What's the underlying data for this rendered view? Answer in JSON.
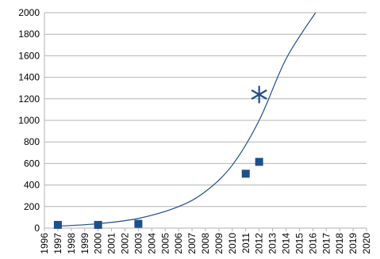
{
  "chart_data": {
    "type": "scatter",
    "title": "",
    "xlabel": "",
    "ylabel": "",
    "xlim": [
      1996,
      2020
    ],
    "ylim": [
      0,
      2000
    ],
    "x_ticks": [
      "1996",
      "1997",
      "1998",
      "1999",
      "2000",
      "2001",
      "2002",
      "2003",
      "2004",
      "2005",
      "2006",
      "2007",
      "2008",
      "2009",
      "2010",
      "2011",
      "2012",
      "2013",
      "2014",
      "2015",
      "2016",
      "2017",
      "2018",
      "2019",
      "2020"
    ],
    "y_ticks": [
      "0",
      "200",
      "400",
      "600",
      "800",
      "1000",
      "1200",
      "1400",
      "1600",
      "1800",
      "2000"
    ],
    "grid": "horizontal",
    "legend": "none",
    "series": [
      {
        "marker": "square",
        "x": [
          1997,
          2000,
          2003,
          2011,
          2012
        ],
        "y": [
          30,
          30,
          40,
          505,
          615
        ]
      },
      {
        "marker": "asterisk",
        "x": [
          2012
        ],
        "y": [
          1240
        ]
      }
    ],
    "trendline": {
      "type": "exponential",
      "x": [
        1997,
        2000,
        2003,
        2006,
        2008,
        2010,
        2012,
        2014,
        2016.2
      ],
      "y": [
        18,
        41,
        90,
        200,
        340,
        585,
        1000,
        1570,
        2000
      ]
    },
    "colors": {
      "marker": "#1f4e8c",
      "trendline": "#1f4e8c",
      "grid": "#b3b3b3"
    }
  }
}
